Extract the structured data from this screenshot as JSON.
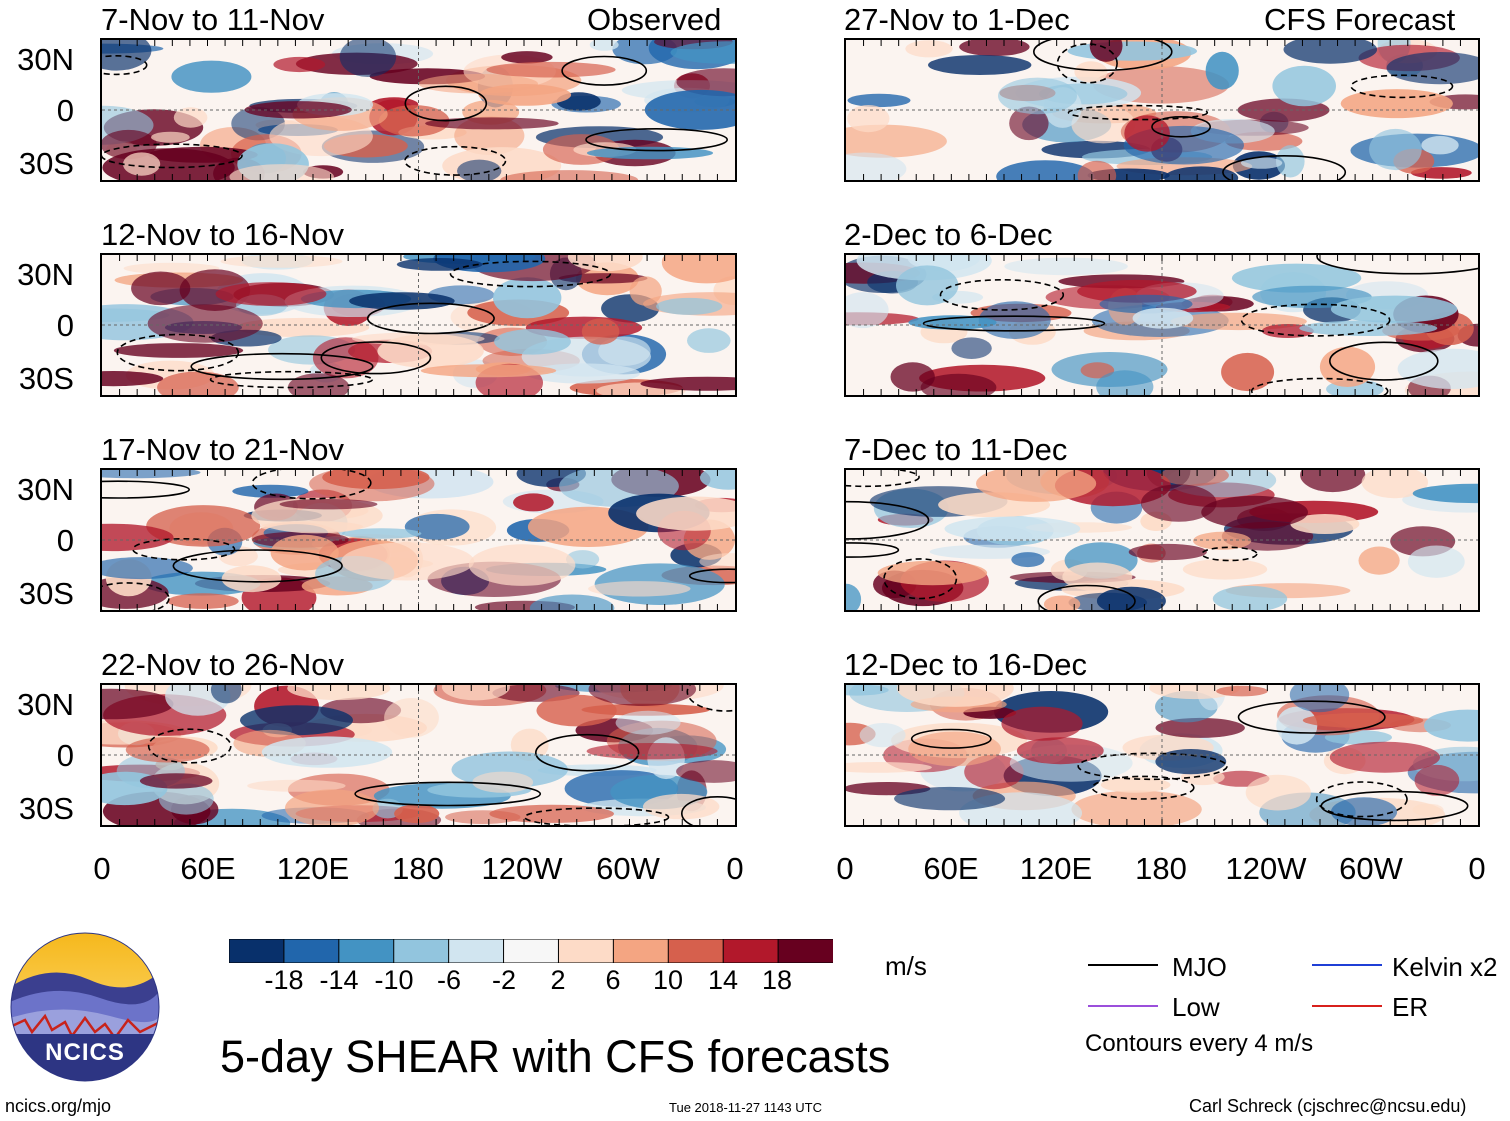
{
  "labels": {
    "observed": "Observed",
    "forecast": "CFS Forecast"
  },
  "chart_data": {
    "type": "heatmap",
    "title": "5-day SHEAR with CFS forecasts",
    "variable": "SHEAR",
    "units": "m/s",
    "lat_labels": [
      "30N",
      "0",
      "30S"
    ],
    "lon_labels": [
      "0",
      "60E",
      "120E",
      "180",
      "120W",
      "60W",
      "0"
    ],
    "panels_observed": [
      {
        "period": "7-Nov to 11-Nov"
      },
      {
        "period": "12-Nov to 16-Nov"
      },
      {
        "period": "17-Nov to 21-Nov"
      },
      {
        "period": "22-Nov to 26-Nov"
      }
    ],
    "panels_forecast": [
      {
        "period": "27-Nov to 1-Dec"
      },
      {
        "period": "2-Dec to 6-Dec"
      },
      {
        "period": "7-Dec to 11-Dec"
      },
      {
        "period": "12-Dec to 16-Dec"
      }
    ],
    "colorbar": {
      "tick_labels": [
        "-18",
        "-14",
        "-10",
        "-6",
        "-2",
        "2",
        "6",
        "10",
        "14",
        "18"
      ],
      "colors": [
        "#08306b",
        "#2166ac",
        "#4393c3",
        "#92c5de",
        "#d1e5f0",
        "#f7f7f7",
        "#fddbc7",
        "#f4a582",
        "#d6604d",
        "#b2182b",
        "#67001f"
      ]
    },
    "legend": [
      {
        "label": "MJO",
        "color": "#000000"
      },
      {
        "label": "Kelvin x2",
        "color": "#1f3fd6"
      },
      {
        "label": "Low",
        "color": "#9b4fdb"
      },
      {
        "label": "ER",
        "color": "#d8201c"
      }
    ],
    "contour_note": "Contours every 4 m/s"
  },
  "branding": {
    "logo_text": "NCICS",
    "site": "ncics.org/mjo",
    "timestamp": "Tue 2018-11-27 1143 UTC",
    "author": "Carl Schreck (cjschrec@ncsu.edu)"
  }
}
